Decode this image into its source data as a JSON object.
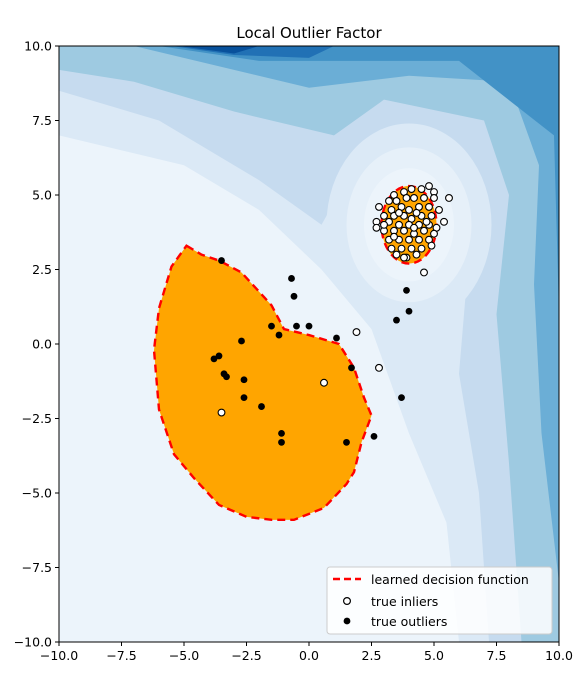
{
  "chart_data": {
    "type": "scatter",
    "title": "Local Outlier Factor",
    "xlabel": "",
    "ylabel": "",
    "xlim": [
      -10,
      10
    ],
    "ylim": [
      -10,
      10
    ],
    "x_ticks": [
      "−10.0",
      "−7.5",
      "−5.0",
      "−2.5",
      "0.0",
      "2.5",
      "5.0",
      "7.5",
      "10.0"
    ],
    "y_ticks": [
      "−10.0",
      "−7.5",
      "−5.0",
      "−2.5",
      "0.0",
      "2.5",
      "5.0",
      "7.5",
      "10.0"
    ],
    "x_tick_values": [
      -10,
      -7.5,
      -5,
      -2.5,
      0,
      2.5,
      5,
      7.5,
      10
    ],
    "y_tick_values": [
      -10,
      -7.5,
      -5,
      -2.5,
      0,
      2.5,
      5,
      7.5,
      10
    ],
    "grid": false,
    "legend_position": "bottom-right",
    "colors": {
      "decision_fill": "#ffa500",
      "decision_line": "#ff0000",
      "background_light": "#ecf4fb",
      "background_dark": "#08519c",
      "inlier_face": "#ffffff",
      "outlier_face": "#000000"
    },
    "legend": [
      {
        "label": "learned decision function",
        "marker": "dashed-line"
      },
      {
        "label": "true inliers",
        "marker": "open-circle"
      },
      {
        "label": "true outliers",
        "marker": "filled-circle"
      }
    ],
    "decision_boundary": [
      [
        -4.9,
        3.3
      ],
      [
        -4.3,
        3.0
      ],
      [
        -3.6,
        2.8
      ],
      [
        -2.7,
        2.4
      ],
      [
        -1.5,
        1.3
      ],
      [
        -1.0,
        0.5
      ],
      [
        0.0,
        0.3
      ],
      [
        1.2,
        0.0
      ],
      [
        1.8,
        -0.8
      ],
      [
        2.2,
        -1.8
      ],
      [
        2.5,
        -2.4
      ],
      [
        2.1,
        -3.3
      ],
      [
        1.8,
        -4.3
      ],
      [
        1.5,
        -4.7
      ],
      [
        0.6,
        -5.5
      ],
      [
        -0.6,
        -5.9
      ],
      [
        -1.5,
        -5.9
      ],
      [
        -2.5,
        -5.8
      ],
      [
        -3.6,
        -5.4
      ],
      [
        -4.6,
        -4.5
      ],
      [
        -5.4,
        -3.7
      ],
      [
        -6.0,
        -2.2
      ],
      [
        -6.2,
        -0.2
      ],
      [
        -6.0,
        1.2
      ],
      [
        -5.5,
        2.6
      ]
    ],
    "inlier_boundary_center": [
      4.0,
      4.0
    ],
    "inlier_boundary_radius": [
      1.1,
      1.3
    ],
    "series": [
      {
        "name": "true inliers",
        "points": [
          [
            3.4,
            5.0
          ],
          [
            3.8,
            5.1
          ],
          [
            4.1,
            5.2
          ],
          [
            4.5,
            5.2
          ],
          [
            4.8,
            5.3
          ],
          [
            5.0,
            5.1
          ],
          [
            3.2,
            4.8
          ],
          [
            3.5,
            4.8
          ],
          [
            3.9,
            4.9
          ],
          [
            4.2,
            4.9
          ],
          [
            4.6,
            4.9
          ],
          [
            5.0,
            4.9
          ],
          [
            5.6,
            4.9
          ],
          [
            2.8,
            4.6
          ],
          [
            3.3,
            4.5
          ],
          [
            3.7,
            4.6
          ],
          [
            4.0,
            4.5
          ],
          [
            4.4,
            4.6
          ],
          [
            4.8,
            4.6
          ],
          [
            5.2,
            4.5
          ],
          [
            3.0,
            4.3
          ],
          [
            3.4,
            4.3
          ],
          [
            3.8,
            4.3
          ],
          [
            4.1,
            4.2
          ],
          [
            4.5,
            4.3
          ],
          [
            4.9,
            4.3
          ],
          [
            5.4,
            4.1
          ],
          [
            2.7,
            4.1
          ],
          [
            3.2,
            4.1
          ],
          [
            3.6,
            4.0
          ],
          [
            4.0,
            4.0
          ],
          [
            4.4,
            4.0
          ],
          [
            4.8,
            4.0
          ],
          [
            5.1,
            3.9
          ],
          [
            3.0,
            3.8
          ],
          [
            3.4,
            3.8
          ],
          [
            3.8,
            3.8
          ],
          [
            4.2,
            3.7
          ],
          [
            4.6,
            3.8
          ],
          [
            5.0,
            3.7
          ],
          [
            2.7,
            3.9
          ],
          [
            3.2,
            3.5
          ],
          [
            3.6,
            3.5
          ],
          [
            4.0,
            3.5
          ],
          [
            4.4,
            3.5
          ],
          [
            4.8,
            3.5
          ],
          [
            3.3,
            3.2
          ],
          [
            3.7,
            3.2
          ],
          [
            4.1,
            3.2
          ],
          [
            4.5,
            3.2
          ],
          [
            4.9,
            3.3
          ],
          [
            3.5,
            3.0
          ],
          [
            3.9,
            2.9
          ],
          [
            4.3,
            3.0
          ],
          [
            3.8,
            2.9
          ],
          [
            3.0,
            4.0
          ],
          [
            4.3,
            4.4
          ],
          [
            3.6,
            4.4
          ],
          [
            4.7,
            4.1
          ],
          [
            3.4,
            3.6
          ],
          [
            4.2,
            3.9
          ],
          [
            4.6,
            2.4
          ],
          [
            1.9,
            0.4
          ],
          [
            2.8,
            -0.8
          ],
          [
            0.6,
            -1.3
          ],
          [
            -3.5,
            -2.3
          ]
        ]
      },
      {
        "name": "true outliers",
        "points": [
          [
            -3.5,
            2.8
          ],
          [
            -0.7,
            2.2
          ],
          [
            -0.6,
            1.6
          ],
          [
            3.9,
            1.8
          ],
          [
            4.0,
            1.1
          ],
          [
            3.5,
            0.8
          ],
          [
            -1.5,
            0.6
          ],
          [
            -0.5,
            0.6
          ],
          [
            0.0,
            0.6
          ],
          [
            1.1,
            0.2
          ],
          [
            -2.7,
            0.1
          ],
          [
            -1.2,
            0.3
          ],
          [
            -3.6,
            -0.4
          ],
          [
            -3.8,
            -0.5
          ],
          [
            -3.4,
            -1.0
          ],
          [
            -3.3,
            -1.1
          ],
          [
            -2.6,
            -1.2
          ],
          [
            1.7,
            -0.8
          ],
          [
            -2.6,
            -1.8
          ],
          [
            -1.9,
            -2.1
          ],
          [
            3.7,
            -1.8
          ],
          [
            -1.1,
            -3.0
          ],
          [
            -1.1,
            -3.3
          ],
          [
            1.5,
            -3.3
          ],
          [
            2.6,
            -3.1
          ]
        ]
      }
    ]
  }
}
